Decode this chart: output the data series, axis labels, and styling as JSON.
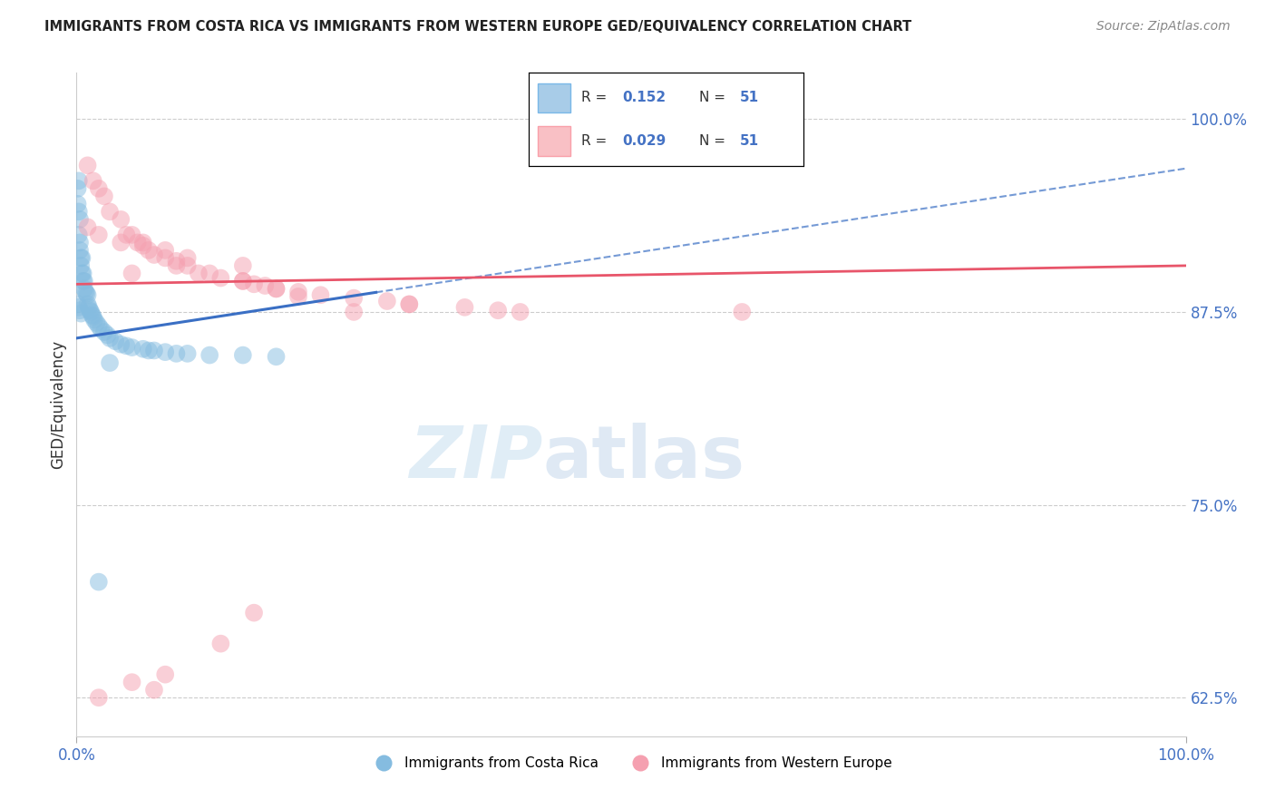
{
  "title": "IMMIGRANTS FROM COSTA RICA VS IMMIGRANTS FROM WESTERN EUROPE GED/EQUIVALENCY CORRELATION CHART",
  "source": "Source: ZipAtlas.com",
  "ylabel": "GED/Equivalency",
  "ytick_labels": [
    "62.5%",
    "75.0%",
    "87.5%",
    "100.0%"
  ],
  "ytick_values": [
    0.625,
    0.75,
    0.875,
    1.0
  ],
  "R_cr": 0.152,
  "N_cr": 51,
  "R_we": 0.029,
  "N_we": 51,
  "blue_trend_color": "#3a6fc4",
  "pink_trend_color": "#e8556a",
  "blue_scatter_color": "#85bce0",
  "pink_scatter_color": "#f5a0b0",
  "legend_blue_patch": "#a8cce8",
  "legend_pink_patch": "#f9c0c5",
  "cr_x": [
    0.001,
    0.001,
    0.002,
    0.002,
    0.002,
    0.003,
    0.003,
    0.003,
    0.004,
    0.004,
    0.005,
    0.005,
    0.006,
    0.006,
    0.007,
    0.007,
    0.008,
    0.009,
    0.01,
    0.01,
    0.011,
    0.012,
    0.013,
    0.014,
    0.015,
    0.016,
    0.018,
    0.02,
    0.022,
    0.025,
    0.028,
    0.03,
    0.035,
    0.04,
    0.045,
    0.05,
    0.06,
    0.065,
    0.07,
    0.08,
    0.09,
    0.1,
    0.12,
    0.15,
    0.18,
    0.001,
    0.002,
    0.003,
    0.004,
    0.03,
    0.02
  ],
  "cr_y": [
    0.955,
    0.945,
    0.96,
    0.94,
    0.925,
    0.935,
    0.92,
    0.915,
    0.91,
    0.905,
    0.91,
    0.9,
    0.9,
    0.895,
    0.895,
    0.89,
    0.888,
    0.887,
    0.886,
    0.88,
    0.878,
    0.876,
    0.875,
    0.873,
    0.872,
    0.87,
    0.868,
    0.866,
    0.864,
    0.862,
    0.86,
    0.858,
    0.856,
    0.854,
    0.853,
    0.852,
    0.851,
    0.85,
    0.85,
    0.849,
    0.848,
    0.848,
    0.847,
    0.847,
    0.846,
    0.88,
    0.878,
    0.876,
    0.874,
    0.842,
    0.7
  ],
  "we_x": [
    0.01,
    0.015,
    0.02,
    0.025,
    0.03,
    0.04,
    0.045,
    0.05,
    0.055,
    0.06,
    0.065,
    0.07,
    0.08,
    0.09,
    0.1,
    0.11,
    0.12,
    0.13,
    0.15,
    0.16,
    0.17,
    0.18,
    0.2,
    0.22,
    0.25,
    0.28,
    0.3,
    0.35,
    0.38,
    0.15,
    0.1,
    0.08,
    0.06,
    0.04,
    0.02,
    0.01,
    0.05,
    0.09,
    0.15,
    0.2,
    0.25,
    0.6,
    0.4,
    0.3,
    0.18,
    0.16,
    0.13,
    0.08,
    0.05,
    0.07,
    0.02
  ],
  "we_y": [
    0.97,
    0.96,
    0.955,
    0.95,
    0.94,
    0.935,
    0.925,
    0.925,
    0.92,
    0.918,
    0.915,
    0.912,
    0.91,
    0.908,
    0.905,
    0.9,
    0.9,
    0.897,
    0.895,
    0.893,
    0.892,
    0.89,
    0.888,
    0.886,
    0.884,
    0.882,
    0.88,
    0.878,
    0.876,
    0.905,
    0.91,
    0.915,
    0.92,
    0.92,
    0.925,
    0.93,
    0.9,
    0.905,
    0.895,
    0.885,
    0.875,
    0.875,
    0.875,
    0.88,
    0.89,
    0.68,
    0.66,
    0.64,
    0.635,
    0.63,
    0.625
  ],
  "xlim": [
    0.0,
    1.0
  ],
  "ylim": [
    0.6,
    1.03
  ],
  "blue_line_x": [
    0.0,
    1.0
  ],
  "blue_line_y": [
    0.858,
    0.968
  ],
  "pink_line_x": [
    0.0,
    1.0
  ],
  "pink_line_y": [
    0.893,
    0.905
  ],
  "dash_line_x": [
    0.27,
    1.0
  ],
  "dash_line_y": [
    0.915,
    0.968
  ]
}
